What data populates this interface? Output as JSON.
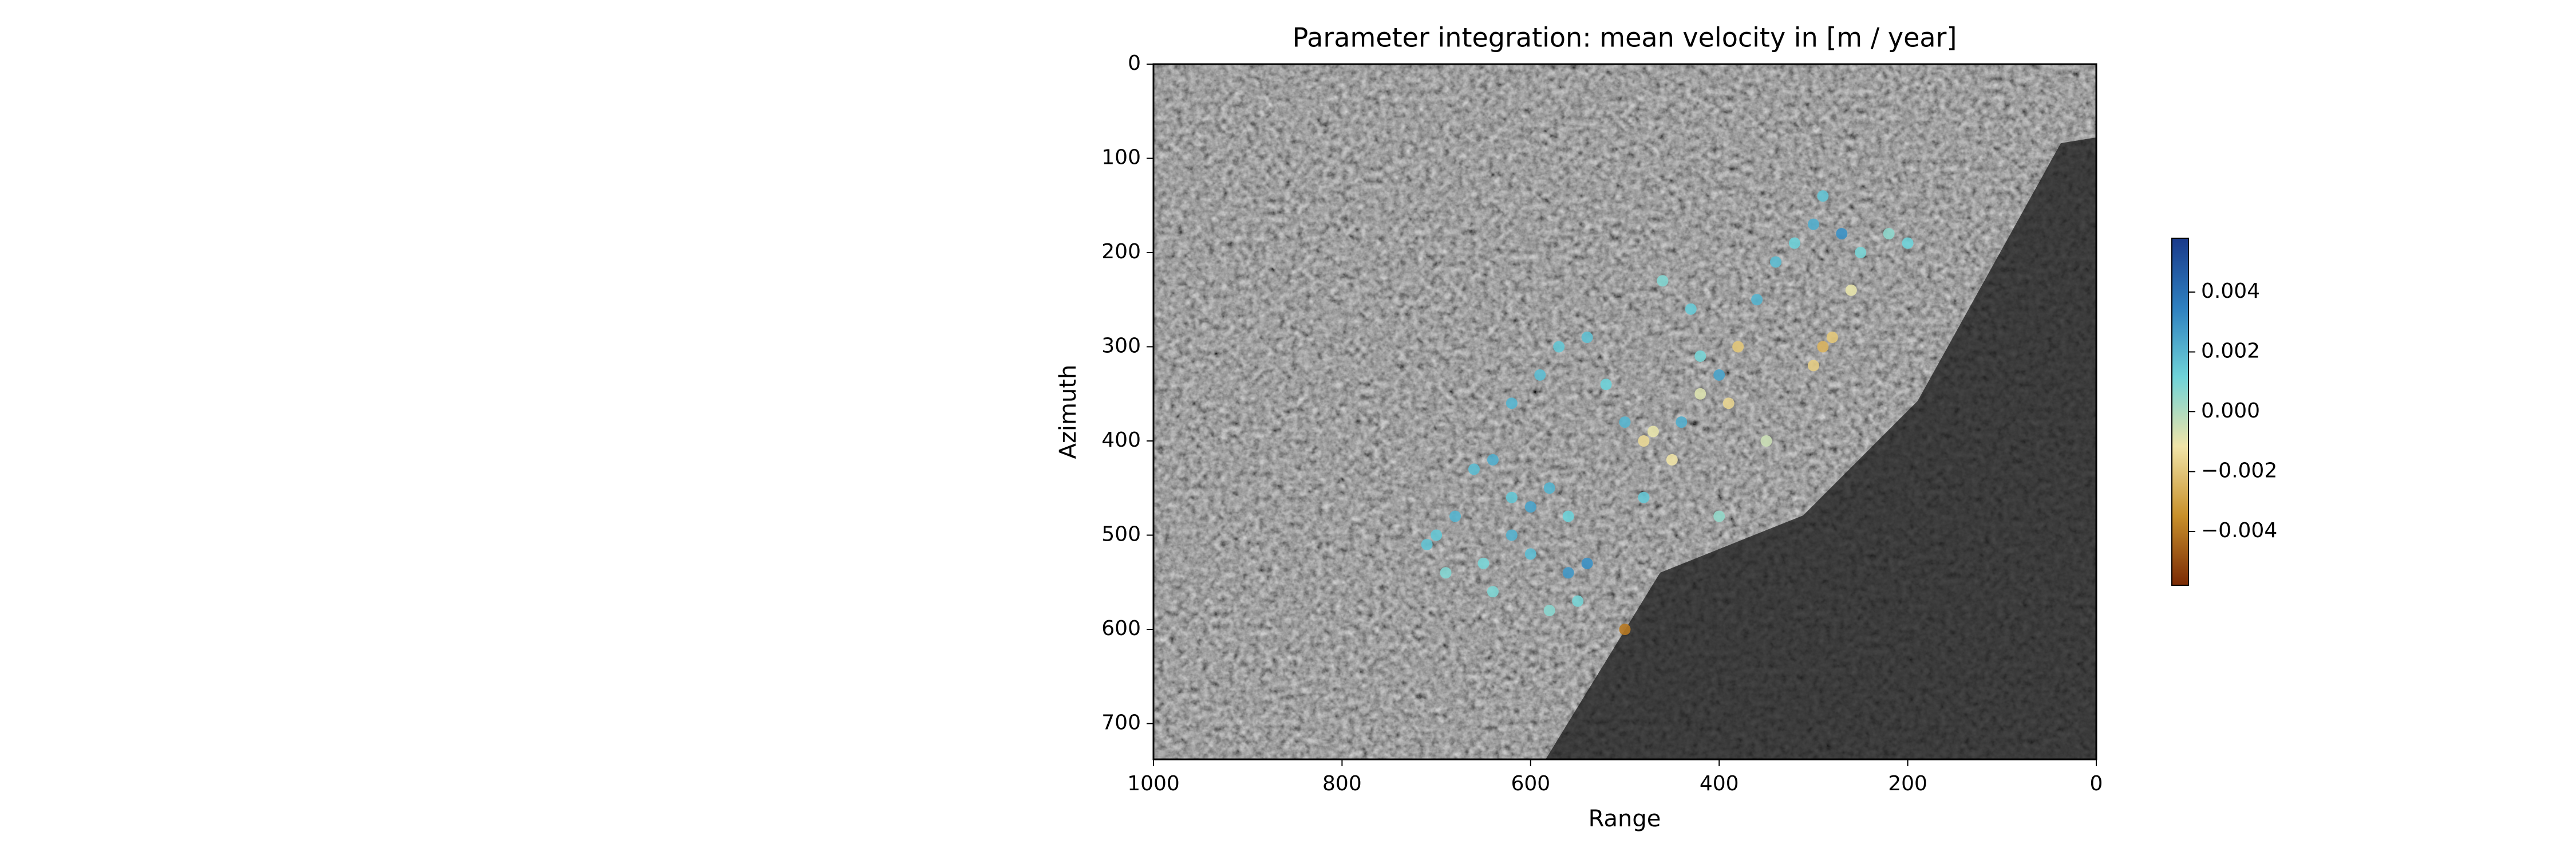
{
  "chart_data": {
    "type": "scatter",
    "title": "Parameter integration: mean velocity in [m / year]",
    "xlabel": "Range",
    "ylabel": "Azimuth",
    "xlim": [
      1000,
      0
    ],
    "xticks": [
      1000,
      800,
      600,
      400,
      200,
      0
    ],
    "ylim": [
      738,
      0
    ],
    "yticks": [
      0,
      100,
      200,
      300,
      400,
      500,
      600,
      700
    ],
    "clim": [
      -0.0058,
      0.0058
    ],
    "cticks": [
      {
        "value": -0.004,
        "label": "−0.004"
      },
      {
        "value": -0.002,
        "label": "−0.002"
      },
      {
        "value": 0,
        "label": "0.000"
      },
      0.002,
      0.004
    ],
    "colorscale": [
      "#7a2a05",
      "#c8902a",
      "#f0e4a8",
      "#6fd3d8",
      "#2e80c0",
      "#1a3a8a"
    ],
    "x": [
      700,
      680,
      660,
      640,
      620,
      600,
      580,
      560,
      540,
      560,
      600,
      620,
      650,
      690,
      710,
      620,
      590,
      570,
      540,
      520,
      500,
      480,
      470,
      450,
      440,
      420,
      400,
      380,
      390,
      420,
      430,
      460,
      360,
      340,
      320,
      300,
      290,
      270,
      250,
      220,
      200,
      290,
      280,
      300,
      500,
      550,
      400,
      350,
      260,
      480,
      640,
      580
    ],
    "y": [
      500,
      480,
      430,
      420,
      460,
      470,
      450,
      480,
      530,
      540,
      520,
      500,
      530,
      540,
      510,
      360,
      330,
      300,
      290,
      340,
      380,
      400,
      390,
      420,
      380,
      350,
      330,
      300,
      360,
      310,
      260,
      230,
      250,
      210,
      190,
      170,
      140,
      180,
      200,
      180,
      190,
      300,
      290,
      320,
      600,
      570,
      480,
      400,
      240,
      460,
      560,
      580
    ],
    "values": [
      0.0015,
      0.002,
      0.0018,
      0.0022,
      0.0015,
      0.0025,
      0.002,
      0.0012,
      0.003,
      0.0028,
      0.0018,
      0.0021,
      0.001,
      0.0008,
      0.0016,
      0.002,
      0.0018,
      0.0015,
      0.0017,
      0.0012,
      0.002,
      -0.0015,
      -0.001,
      -0.0012,
      0.0022,
      -0.0008,
      0.0025,
      -0.002,
      -0.0016,
      0.001,
      0.0014,
      0.0008,
      0.002,
      0.0018,
      0.0012,
      0.0022,
      0.0016,
      0.003,
      0.001,
      0.0006,
      0.0012,
      -0.0025,
      -0.002,
      -0.0018,
      -0.004,
      0.001,
      0.0005,
      -0.0005,
      -0.001,
      0.0015,
      0.0009,
      0.0007
    ]
  }
}
